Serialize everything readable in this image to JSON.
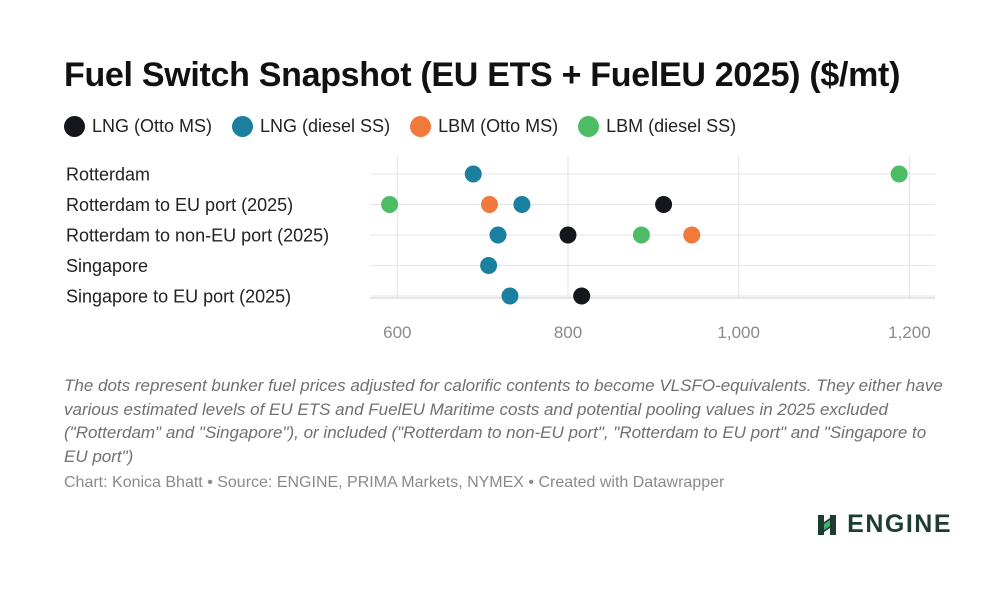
{
  "title": "Fuel Switch Snapshot (EU ETS + FuelEU 2025) ($/mt)",
  "legend": [
    {
      "label": "LNG (Otto MS)",
      "color": "#16161d"
    },
    {
      "label": "LNG (diesel SS)",
      "color": "#1b7fa0"
    },
    {
      "label": "LBM (Otto MS)",
      "color": "#ef7a3c"
    },
    {
      "label": "LBM (diesel SS)",
      "color": "#4cbd64"
    }
  ],
  "chart_data": {
    "type": "scatter",
    "title": "Fuel Switch Snapshot (EU ETS + FuelEU 2025) ($/mt)",
    "categories": [
      "Rotterdam",
      "Rotterdam to EU port (2025)",
      "Rotterdam to non-EU port (2025)",
      "Singapore",
      "Singapore to EU port (2025)"
    ],
    "series": [
      {
        "name": "LNG (Otto MS)",
        "color": "#16161d",
        "values": [
          null,
          912,
          800,
          null,
          816
        ]
      },
      {
        "name": "LNG (diesel SS)",
        "color": "#1b7fa0",
        "values": [
          689,
          746,
          718,
          707,
          732
        ]
      },
      {
        "name": "LBM (Otto MS)",
        "color": "#ef7a3c",
        "values": [
          null,
          708,
          945,
          null,
          null
        ]
      },
      {
        "name": "LBM (diesel SS)",
        "color": "#4cbd64",
        "values": [
          1188,
          591,
          886,
          null,
          null
        ]
      }
    ],
    "xlim": [
      568,
      1230
    ],
    "xticks": [
      600,
      800,
      1000,
      1200
    ],
    "xtick_labels": [
      "600",
      "800",
      "1,000",
      "1,200"
    ],
    "grid": true,
    "legend_position": "top-left"
  },
  "notes": "The dots represent bunker fuel prices adjusted for calorific contents to become VLSFO-equivalents. They either have various estimated levels of EU ETS and FuelEU Maritime costs and potential pooling values in 2025 excluded (\"Rotterdam\" and \"Singapore\"), or included (\"Rotterdam to non-EU port\", \"Rotterdam to EU port\" and \"Singapore to EU port\")",
  "credit": "Chart: Konica Bhatt • Source: ENGINE, PRIMA Markets, NYMEX • Created with Datawrapper",
  "logo": {
    "text": "ENGINE",
    "color": "#1d3d33"
  }
}
